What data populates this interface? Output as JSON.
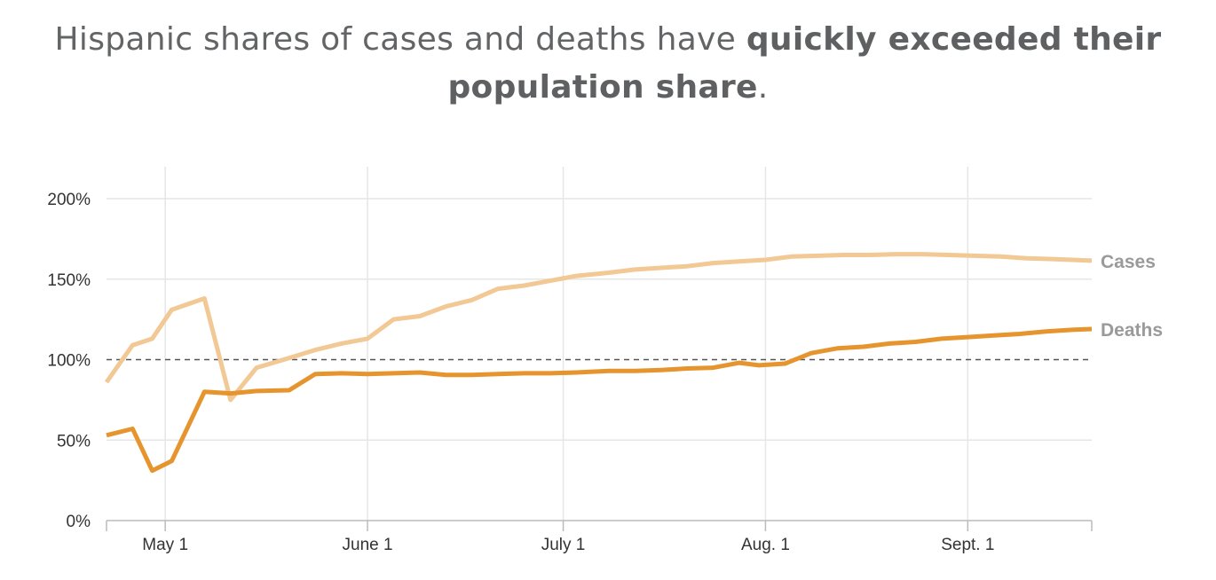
{
  "title": {
    "part1": "Hispanic shares of cases and deaths have ",
    "bold1": "quickly exceeded their",
    "bold2": "population share",
    "end": "."
  },
  "chart_data": {
    "type": "line",
    "title": "Hispanic shares of cases and deaths have quickly exceeded their population share.",
    "xlabel": "",
    "ylabel": "",
    "ylim": [
      0,
      200
    ],
    "xlim": [
      "2020-04-22",
      "2020-09-20"
    ],
    "yticks": [
      0,
      50,
      100,
      150,
      200
    ],
    "ytick_labels": [
      "0%",
      "50%",
      "100%",
      "150%",
      "200%"
    ],
    "xticks": [
      {
        "date": "2020-05-01",
        "label": "May 1"
      },
      {
        "date": "2020-06-01",
        "label": "June 1"
      },
      {
        "date": "2020-07-01",
        "label": "July 1"
      },
      {
        "date": "2020-08-01",
        "label": "Aug. 1"
      },
      {
        "date": "2020-09-01",
        "label": "Sept. 1"
      }
    ],
    "reference_line": {
      "y": 100,
      "style": "dashed"
    },
    "grid": true,
    "legend": "direct labels at right end of lines",
    "series": [
      {
        "name": "Cases",
        "color": "#f2c894",
        "points": [
          [
            "2020-04-22",
            86
          ],
          [
            "2020-04-26",
            109
          ],
          [
            "2020-04-29",
            113
          ],
          [
            "2020-05-02",
            131
          ],
          [
            "2020-05-07",
            138
          ],
          [
            "2020-05-11",
            75
          ],
          [
            "2020-05-15",
            95
          ],
          [
            "2020-05-20",
            101
          ],
          [
            "2020-05-24",
            106
          ],
          [
            "2020-05-28",
            110
          ],
          [
            "2020-06-01",
            113
          ],
          [
            "2020-06-05",
            125
          ],
          [
            "2020-06-09",
            127
          ],
          [
            "2020-06-13",
            133
          ],
          [
            "2020-06-17",
            137
          ],
          [
            "2020-06-21",
            144
          ],
          [
            "2020-06-25",
            146
          ],
          [
            "2020-06-29",
            149
          ],
          [
            "2020-07-03",
            152
          ],
          [
            "2020-07-08",
            154
          ],
          [
            "2020-07-12",
            156
          ],
          [
            "2020-07-16",
            157
          ],
          [
            "2020-07-20",
            158
          ],
          [
            "2020-07-24",
            160
          ],
          [
            "2020-07-28",
            161
          ],
          [
            "2020-08-01",
            162
          ],
          [
            "2020-08-05",
            164
          ],
          [
            "2020-08-09",
            164.5
          ],
          [
            "2020-08-13",
            165
          ],
          [
            "2020-08-17",
            165
          ],
          [
            "2020-08-21",
            165.5
          ],
          [
            "2020-08-25",
            165.5
          ],
          [
            "2020-08-29",
            165
          ],
          [
            "2020-09-02",
            164.5
          ],
          [
            "2020-09-06",
            164
          ],
          [
            "2020-09-10",
            163
          ],
          [
            "2020-09-14",
            162.5
          ],
          [
            "2020-09-20",
            161.5
          ]
        ]
      },
      {
        "name": "Deaths",
        "color": "#e6952e",
        "points": [
          [
            "2020-04-22",
            53
          ],
          [
            "2020-04-26",
            57
          ],
          [
            "2020-04-29",
            31
          ],
          [
            "2020-05-02",
            37
          ],
          [
            "2020-05-07",
            80
          ],
          [
            "2020-05-11",
            79
          ],
          [
            "2020-05-15",
            80.5
          ],
          [
            "2020-05-20",
            81
          ],
          [
            "2020-05-24",
            91
          ],
          [
            "2020-05-28",
            91.5
          ],
          [
            "2020-06-01",
            91
          ],
          [
            "2020-06-05",
            91.5
          ],
          [
            "2020-06-09",
            92
          ],
          [
            "2020-06-13",
            90.5
          ],
          [
            "2020-06-17",
            90.5
          ],
          [
            "2020-06-21",
            91
          ],
          [
            "2020-06-25",
            91.5
          ],
          [
            "2020-06-29",
            91.5
          ],
          [
            "2020-07-03",
            92
          ],
          [
            "2020-07-08",
            93
          ],
          [
            "2020-07-12",
            93
          ],
          [
            "2020-07-16",
            93.5
          ],
          [
            "2020-07-20",
            94.5
          ],
          [
            "2020-07-24",
            95
          ],
          [
            "2020-07-28",
            98
          ],
          [
            "2020-07-31",
            96.5
          ],
          [
            "2020-08-04",
            97.5
          ],
          [
            "2020-08-08",
            104
          ],
          [
            "2020-08-12",
            107
          ],
          [
            "2020-08-16",
            108
          ],
          [
            "2020-08-20",
            110
          ],
          [
            "2020-08-24",
            111
          ],
          [
            "2020-08-28",
            113
          ],
          [
            "2020-09-01",
            114
          ],
          [
            "2020-09-05",
            115
          ],
          [
            "2020-09-09",
            116
          ],
          [
            "2020-09-13",
            117.5
          ],
          [
            "2020-09-17",
            118.5
          ],
          [
            "2020-09-20",
            119
          ]
        ]
      }
    ]
  }
}
